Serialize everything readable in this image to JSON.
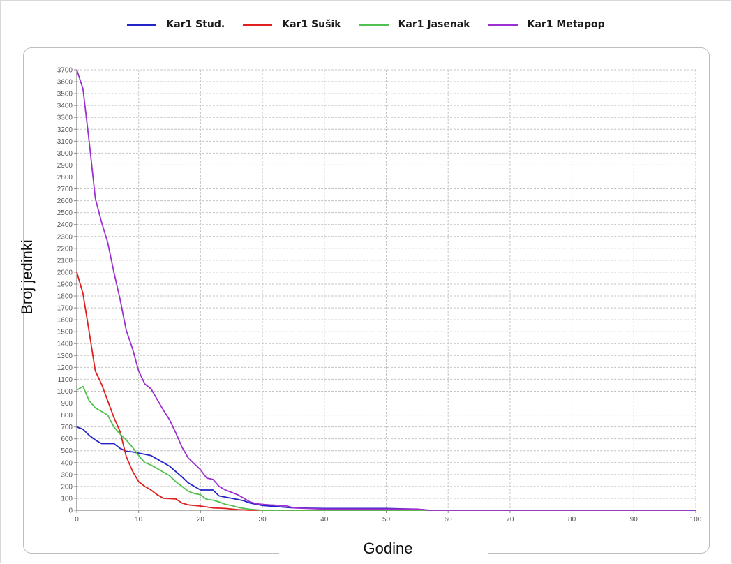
{
  "chart_data": {
    "type": "line",
    "title": "",
    "xlabel": "Godine",
    "ylabel": "Broj jedinki",
    "xlim": [
      0,
      100
    ],
    "ylim": [
      0,
      3700
    ],
    "grid": true,
    "legend_position": "top-center",
    "x_ticks": [
      "0",
      "10",
      "20",
      "30",
      "40",
      "50",
      "60",
      "70",
      "80",
      "90",
      "100"
    ],
    "y_ticks": [
      "0",
      "100",
      "200",
      "300",
      "400",
      "500",
      "600",
      "700",
      "800",
      "900",
      "1000",
      "1100",
      "1200",
      "1300",
      "1400",
      "1500",
      "1600",
      "1700",
      "1800",
      "1900",
      "2000",
      "2100",
      "2200",
      "2300",
      "2400",
      "2500",
      "2600",
      "2700",
      "2800",
      "2900",
      "3000",
      "3100",
      "3200",
      "3300",
      "3400",
      "3500",
      "3600",
      "3700"
    ],
    "series": [
      {
        "name": "Kar1 Stud.",
        "color": "#2323c8",
        "points": [
          [
            0,
            700
          ],
          [
            1,
            680
          ],
          [
            2,
            630
          ],
          [
            3,
            590
          ],
          [
            4,
            560
          ],
          [
            6,
            560
          ],
          [
            7,
            520
          ],
          [
            8,
            495
          ],
          [
            9,
            490
          ],
          [
            10,
            480
          ],
          [
            12,
            460
          ],
          [
            13,
            430
          ],
          [
            15,
            370
          ],
          [
            17,
            280
          ],
          [
            18,
            230
          ],
          [
            20,
            170
          ],
          [
            22,
            170
          ],
          [
            23,
            120
          ],
          [
            25,
            100
          ],
          [
            27,
            80
          ],
          [
            28,
            60
          ],
          [
            30,
            40
          ],
          [
            35,
            20
          ],
          [
            40,
            15
          ],
          [
            50,
            15
          ],
          [
            54,
            10
          ],
          [
            56,
            5
          ],
          [
            57,
            0
          ],
          [
            100,
            0
          ]
        ]
      },
      {
        "name": "Kar1 Sušik",
        "color": "#e01f1f",
        "points": [
          [
            0,
            2000
          ],
          [
            1,
            1820
          ],
          [
            2,
            1500
          ],
          [
            3,
            1170
          ],
          [
            4,
            1060
          ],
          [
            5,
            920
          ],
          [
            6,
            780
          ],
          [
            7,
            660
          ],
          [
            8,
            450
          ],
          [
            9,
            330
          ],
          [
            10,
            240
          ],
          [
            11,
            200
          ],
          [
            12,
            170
          ],
          [
            13,
            130
          ],
          [
            14,
            100
          ],
          [
            16,
            95
          ],
          [
            17,
            60
          ],
          [
            18,
            45
          ],
          [
            20,
            35
          ],
          [
            22,
            20
          ],
          [
            24,
            15
          ],
          [
            26,
            5
          ],
          [
            28,
            0
          ],
          [
            100,
            0
          ]
        ]
      },
      {
        "name": "Kar1 Jasenak",
        "color": "#52c152",
        "points": [
          [
            0,
            1010
          ],
          [
            1,
            1040
          ],
          [
            2,
            920
          ],
          [
            3,
            860
          ],
          [
            4,
            830
          ],
          [
            5,
            800
          ],
          [
            6,
            700
          ],
          [
            7,
            640
          ],
          [
            8,
            590
          ],
          [
            9,
            530
          ],
          [
            10,
            460
          ],
          [
            11,
            400
          ],
          [
            12,
            380
          ],
          [
            13,
            350
          ],
          [
            14,
            320
          ],
          [
            15,
            290
          ],
          [
            16,
            240
          ],
          [
            17,
            200
          ],
          [
            18,
            160
          ],
          [
            19,
            140
          ],
          [
            20,
            130
          ],
          [
            21,
            90
          ],
          [
            22,
            85
          ],
          [
            23,
            70
          ],
          [
            24,
            50
          ],
          [
            25,
            40
          ],
          [
            26,
            25
          ],
          [
            27,
            15
          ],
          [
            28,
            8
          ],
          [
            30,
            0
          ],
          [
            100,
            0
          ]
        ]
      },
      {
        "name": "Kar1 Metapop",
        "color": "#9b2fd0",
        "points": [
          [
            0,
            3700
          ],
          [
            1,
            3540
          ],
          [
            2,
            3100
          ],
          [
            3,
            2620
          ],
          [
            4,
            2420
          ],
          [
            5,
            2250
          ],
          [
            6,
            2000
          ],
          [
            7,
            1770
          ],
          [
            8,
            1510
          ],
          [
            9,
            1360
          ],
          [
            10,
            1170
          ],
          [
            11,
            1060
          ],
          [
            12,
            1020
          ],
          [
            13,
            930
          ],
          [
            14,
            840
          ],
          [
            15,
            760
          ],
          [
            16,
            650
          ],
          [
            17,
            530
          ],
          [
            18,
            440
          ],
          [
            19,
            390
          ],
          [
            20,
            340
          ],
          [
            21,
            270
          ],
          [
            22,
            260
          ],
          [
            23,
            200
          ],
          [
            24,
            170
          ],
          [
            25,
            150
          ],
          [
            26,
            130
          ],
          [
            27,
            100
          ],
          [
            28,
            70
          ],
          [
            29,
            55
          ],
          [
            30,
            50
          ],
          [
            31,
            45
          ],
          [
            33,
            40
          ],
          [
            34,
            35
          ],
          [
            35,
            20
          ],
          [
            37,
            15
          ],
          [
            40,
            10
          ],
          [
            55,
            10
          ],
          [
            56,
            5
          ],
          [
            57,
            0
          ],
          [
            100,
            0
          ]
        ]
      }
    ]
  }
}
